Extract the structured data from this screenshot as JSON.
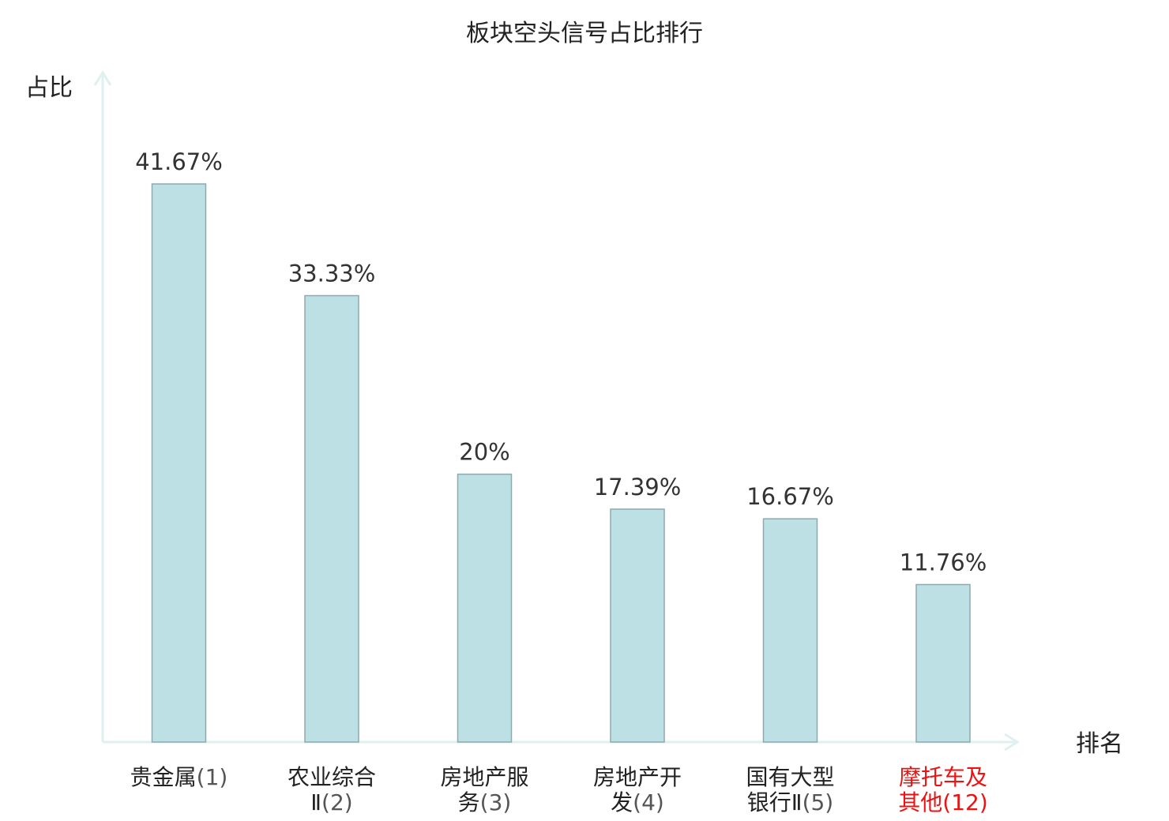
{
  "chart_data": {
    "type": "bar",
    "title": "板块空头信号占比排行",
    "ylabel": "占比",
    "xlabel": "排名",
    "ylim": [
      0,
      50
    ],
    "grid": false,
    "categories": [
      {
        "name_lines": [
          "贵金属"
        ],
        "rank": "(1)",
        "highlight": false
      },
      {
        "name_lines": [
          "农业综合",
          "Ⅱ"
        ],
        "rank": "(2)",
        "highlight": false
      },
      {
        "name_lines": [
          "房地产服",
          "务"
        ],
        "rank": "(3)",
        "highlight": false
      },
      {
        "name_lines": [
          "房地产开",
          "发"
        ],
        "rank": "(4)",
        "highlight": false
      },
      {
        "name_lines": [
          "国有大型",
          "银行Ⅱ"
        ],
        "rank": "(5)",
        "highlight": false
      },
      {
        "name_lines": [
          "摩托车及",
          "其他"
        ],
        "rank": "(12)",
        "highlight": true
      }
    ],
    "values": [
      41.67,
      33.33,
      20,
      17.39,
      16.67,
      11.76
    ],
    "value_labels": [
      "41.67%",
      "33.33%",
      "20%",
      "17.39%",
      "16.67%",
      "11.76%"
    ],
    "colors": {
      "bar_fill": "#bce0e3",
      "bar_stroke": "#8faaae",
      "axis": "#dff1ef",
      "highlight_text": "#ee1111"
    }
  }
}
